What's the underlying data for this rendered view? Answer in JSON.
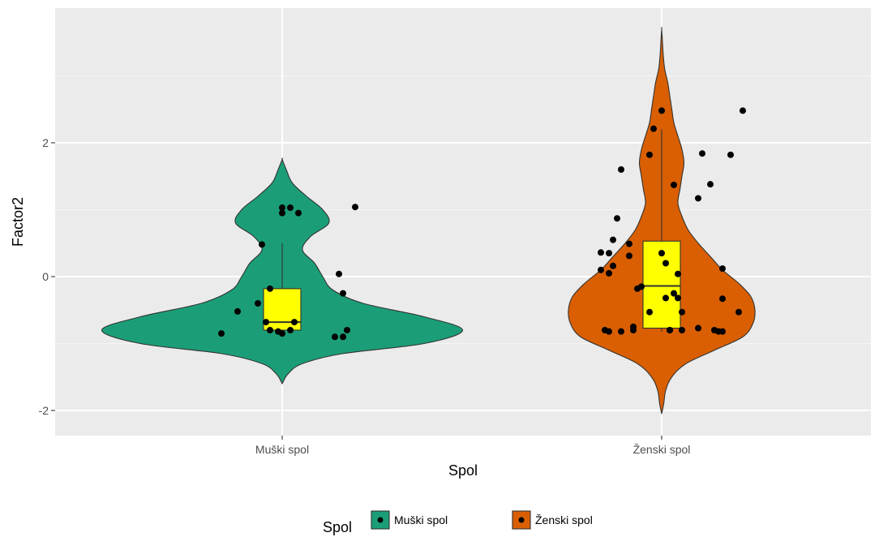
{
  "chart_data": {
    "type": "violin",
    "title": "",
    "xlabel": "Spol",
    "ylabel": "Factor2",
    "ylim": [
      -2.3,
      4.0
    ],
    "yticks": [
      -2,
      0,
      2
    ],
    "ytick_labels": [
      "-2",
      "0",
      "2"
    ],
    "categories": [
      "Muški spol",
      "Ženski spol"
    ],
    "grid": true,
    "legend": {
      "title": "Spol",
      "position": "bottom",
      "entries": [
        "Muški spol",
        "Ženski spol"
      ]
    },
    "colors": {
      "panel_bg": "#ebebeb",
      "grid_major": "#ffffff",
      "grid_minor": "#f5f5f5",
      "box_fill": "#ffff00",
      "point": "#000000",
      "outline": "#333333"
    },
    "series": [
      {
        "name": "Muški spol",
        "color": "#1b9e77",
        "box": {
          "lower_whisker": -0.82,
          "q1": -0.8,
          "median": -0.68,
          "q3": -0.18,
          "upper_whisker": 0.5
        },
        "violin": [
          [
            -1.6,
            0.0
          ],
          [
            -1.45,
            0.03
          ],
          [
            -1.3,
            0.1
          ],
          [
            -1.15,
            0.3
          ],
          [
            -1.0,
            0.7
          ],
          [
            -0.8,
            0.89
          ],
          [
            -0.6,
            0.7
          ],
          [
            -0.4,
            0.4
          ],
          [
            -0.2,
            0.25
          ],
          [
            0.0,
            0.2
          ],
          [
            0.2,
            0.16
          ],
          [
            0.4,
            0.1
          ],
          [
            0.6,
            0.14
          ],
          [
            0.8,
            0.23
          ],
          [
            1.0,
            0.2
          ],
          [
            1.2,
            0.12
          ],
          [
            1.4,
            0.05
          ],
          [
            1.6,
            0.02
          ],
          [
            1.75,
            0.0
          ]
        ],
        "points": [
          [
            -0.15,
            -0.85
          ],
          [
            -0.11,
            -0.52
          ],
          [
            -0.06,
            -0.4
          ],
          [
            -0.05,
            0.48
          ],
          [
            -0.04,
            -0.68
          ],
          [
            -0.03,
            -0.18
          ],
          [
            -0.03,
            -0.8
          ],
          [
            -0.01,
            -0.82
          ],
          [
            0.0,
            -0.85
          ],
          [
            0.0,
            0.95
          ],
          [
            0.0,
            1.03
          ],
          [
            0.02,
            -0.8
          ],
          [
            0.02,
            1.03
          ],
          [
            0.03,
            -0.68
          ],
          [
            0.04,
            0.95
          ],
          [
            0.13,
            -0.9
          ],
          [
            0.14,
            0.04
          ],
          [
            0.15,
            -0.9
          ],
          [
            0.15,
            -0.25
          ],
          [
            0.16,
            -0.8
          ],
          [
            0.18,
            1.04
          ]
        ]
      },
      {
        "name": "Ženski spol",
        "color": "#d95f02",
        "box": {
          "lower_whisker": -0.82,
          "q1": -0.77,
          "median": -0.14,
          "q3": 0.53,
          "upper_whisker": 2.2
        },
        "violin": [
          [
            -2.05,
            0.0
          ],
          [
            -1.9,
            0.01
          ],
          [
            -1.7,
            0.02
          ],
          [
            -1.5,
            0.05
          ],
          [
            -1.3,
            0.12
          ],
          [
            -1.1,
            0.26
          ],
          [
            -0.9,
            0.4
          ],
          [
            -0.7,
            0.45
          ],
          [
            -0.5,
            0.46
          ],
          [
            -0.3,
            0.44
          ],
          [
            -0.1,
            0.38
          ],
          [
            0.1,
            0.3
          ],
          [
            0.3,
            0.24
          ],
          [
            0.5,
            0.18
          ],
          [
            0.7,
            0.13
          ],
          [
            0.9,
            0.1
          ],
          [
            1.1,
            0.08
          ],
          [
            1.3,
            0.09
          ],
          [
            1.5,
            0.1
          ],
          [
            1.7,
            0.11
          ],
          [
            1.9,
            0.1
          ],
          [
            2.1,
            0.08
          ],
          [
            2.3,
            0.06
          ],
          [
            2.5,
            0.05
          ],
          [
            2.7,
            0.04
          ],
          [
            2.9,
            0.03
          ],
          [
            3.1,
            0.015
          ],
          [
            3.3,
            0.008
          ],
          [
            3.5,
            0.004
          ],
          [
            3.7,
            0.0
          ]
        ],
        "points": [
          [
            -0.15,
            0.36
          ],
          [
            -0.15,
            0.1
          ],
          [
            -0.13,
            0.35
          ],
          [
            -0.14,
            -0.8
          ],
          [
            -0.13,
            -0.82
          ],
          [
            -0.13,
            0.05
          ],
          [
            -0.12,
            0.16
          ],
          [
            -0.12,
            0.55
          ],
          [
            -0.11,
            0.87
          ],
          [
            -0.1,
            -0.82
          ],
          [
            -0.1,
            1.6
          ],
          [
            -0.08,
            0.49
          ],
          [
            -0.08,
            0.31
          ],
          [
            -0.07,
            -0.8
          ],
          [
            -0.07,
            -0.75
          ],
          [
            -0.06,
            -0.18
          ],
          [
            -0.05,
            -0.15
          ],
          [
            -0.03,
            -0.53
          ],
          [
            -0.03,
            1.82
          ],
          [
            -0.02,
            2.21
          ],
          [
            0.0,
            2.48
          ],
          [
            0.0,
            0.35
          ],
          [
            0.01,
            0.2
          ],
          [
            0.01,
            -0.32
          ],
          [
            0.02,
            -0.8
          ],
          [
            0.02,
            -0.8
          ],
          [
            0.03,
            1.37
          ],
          [
            0.03,
            -0.25
          ],
          [
            0.04,
            -0.32
          ],
          [
            0.04,
            0.04
          ],
          [
            0.05,
            -0.8
          ],
          [
            0.05,
            -0.53
          ],
          [
            0.09,
            -0.77
          ],
          [
            0.09,
            1.17
          ],
          [
            0.1,
            1.84
          ],
          [
            0.12,
            1.38
          ],
          [
            0.13,
            -0.8
          ],
          [
            0.14,
            -0.82
          ],
          [
            0.15,
            -0.82
          ],
          [
            0.15,
            0.12
          ],
          [
            0.15,
            -0.33
          ],
          [
            0.17,
            1.82
          ],
          [
            0.19,
            -0.53
          ],
          [
            0.2,
            2.48
          ]
        ]
      }
    ]
  }
}
